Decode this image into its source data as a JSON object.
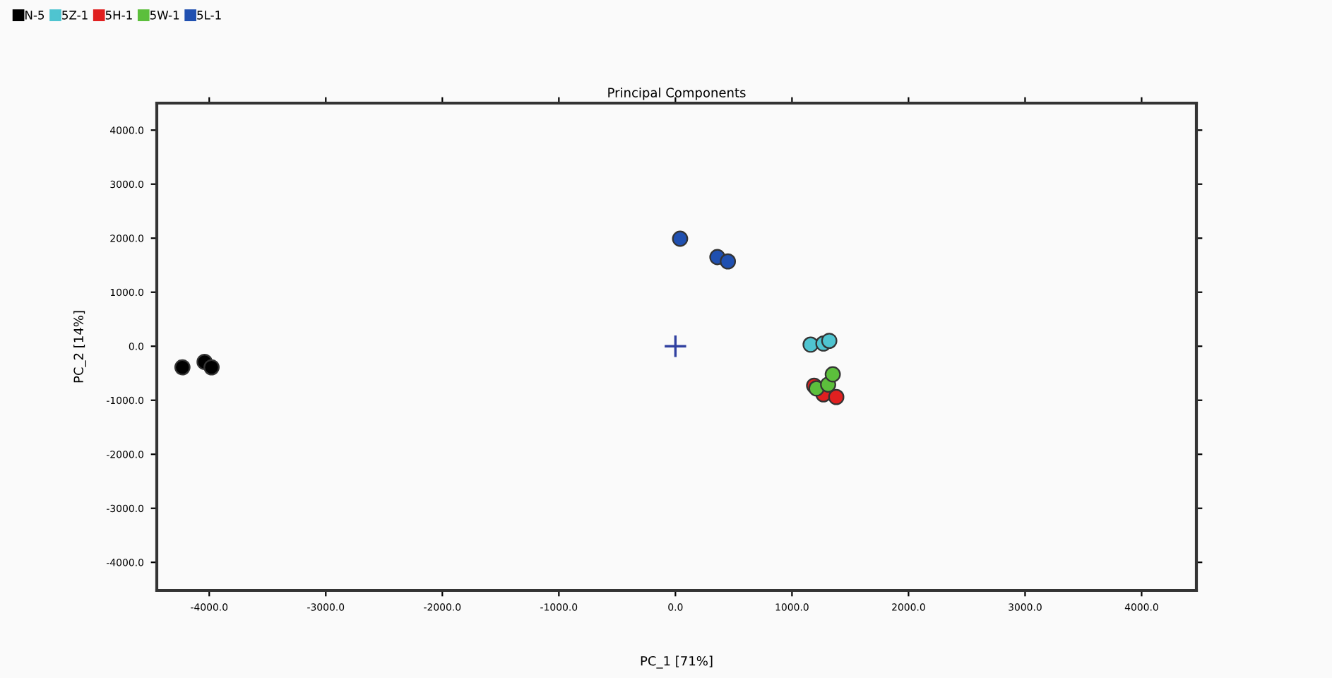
{
  "chart_data": {
    "type": "scatter",
    "title": "Principal Components",
    "xlabel": "PC_1 [71%]",
    "ylabel": "PC_2 [14%]",
    "xlim": [
      -4450,
      4470
    ],
    "ylim": [
      -4520,
      4500
    ],
    "xticks": [
      {
        "value": -4000,
        "label": "-4000.0"
      },
      {
        "value": -3000,
        "label": "-3000.0"
      },
      {
        "value": -2000,
        "label": "-2000.0"
      },
      {
        "value": -1000,
        "label": "-1000.0"
      },
      {
        "value": 0,
        "label": "0.0"
      },
      {
        "value": 1000,
        "label": "1000.0"
      },
      {
        "value": 2000,
        "label": "2000.0"
      },
      {
        "value": 3000,
        "label": "3000.0"
      },
      {
        "value": 4000,
        "label": "4000.0"
      }
    ],
    "yticks": [
      {
        "value": -4000,
        "label": "-4000.0"
      },
      {
        "value": -3000,
        "label": "-3000.0"
      },
      {
        "value": -2000,
        "label": "-2000.0"
      },
      {
        "value": -1000,
        "label": "-1000.0"
      },
      {
        "value": 0,
        "label": "0.0"
      },
      {
        "value": 1000,
        "label": "1000.0"
      },
      {
        "value": 2000,
        "label": "2000.0"
      },
      {
        "value": 3000,
        "label": "3000.0"
      },
      {
        "value": 4000,
        "label": "4000.0"
      }
    ],
    "grid": false,
    "legend": "top left",
    "marker": "circle",
    "series": [
      {
        "name": "N-5",
        "color": "#000000",
        "x": [
          -4230,
          -4040,
          -3980
        ],
        "values": [
          -390,
          -290,
          -390
        ]
      },
      {
        "name": "5Z-1",
        "color": "#4fc4d0",
        "x": [
          1160,
          1270,
          1320
        ],
        "values": [
          30,
          50,
          100
        ]
      },
      {
        "name": "5H-1",
        "color": "#e02020",
        "x": [
          1190,
          1270,
          1380
        ],
        "values": [
          -730,
          -890,
          -940
        ]
      },
      {
        "name": "5W-1",
        "color": "#5cbf3c",
        "x": [
          1210,
          1310,
          1350
        ],
        "values": [
          -780,
          -710,
          -520
        ]
      },
      {
        "name": "5L-1",
        "color": "#2050b0",
        "x": [
          40,
          360,
          450
        ],
        "values": [
          1990,
          1650,
          1570
        ]
      },
      {
        "color": "#3040a0",
        "marker": "cross",
        "x": [
          0
        ],
        "values": [
          0
        ]
      }
    ]
  }
}
